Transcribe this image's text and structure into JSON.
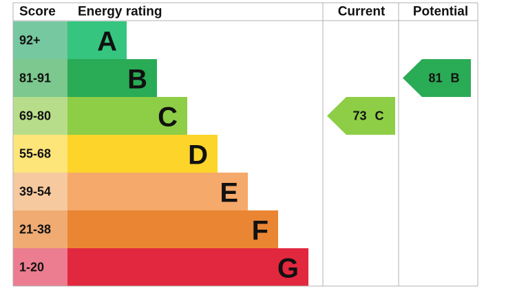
{
  "header": {
    "score": "Score",
    "rating": "Energy rating",
    "current": "Current",
    "potential": "Potential"
  },
  "bands": [
    {
      "score": "92+",
      "letter": "A",
      "color": "#35c57f",
      "score_color": "#76c8a0"
    },
    {
      "score": "81-91",
      "letter": "B",
      "color": "#2aab55",
      "score_color": "#7cc88e"
    },
    {
      "score": "69-80",
      "letter": "C",
      "color": "#8dce46",
      "score_color": "#b7dd8a"
    },
    {
      "score": "55-68",
      "letter": "D",
      "color": "#fdd42a",
      "score_color": "#fde57a"
    },
    {
      "score": "39-54",
      "letter": "E",
      "color": "#f5a96a",
      "score_color": "#f6c99e"
    },
    {
      "score": "21-38",
      "letter": "F",
      "color": "#ea8633",
      "score_color": "#f0ab73"
    },
    {
      "score": "1-20",
      "letter": "G",
      "color": "#e2283e",
      "score_color": "#ec7d90"
    }
  ],
  "current": {
    "value": 73,
    "rating": "C"
  },
  "potential": {
    "value": 81,
    "rating": "B"
  }
}
